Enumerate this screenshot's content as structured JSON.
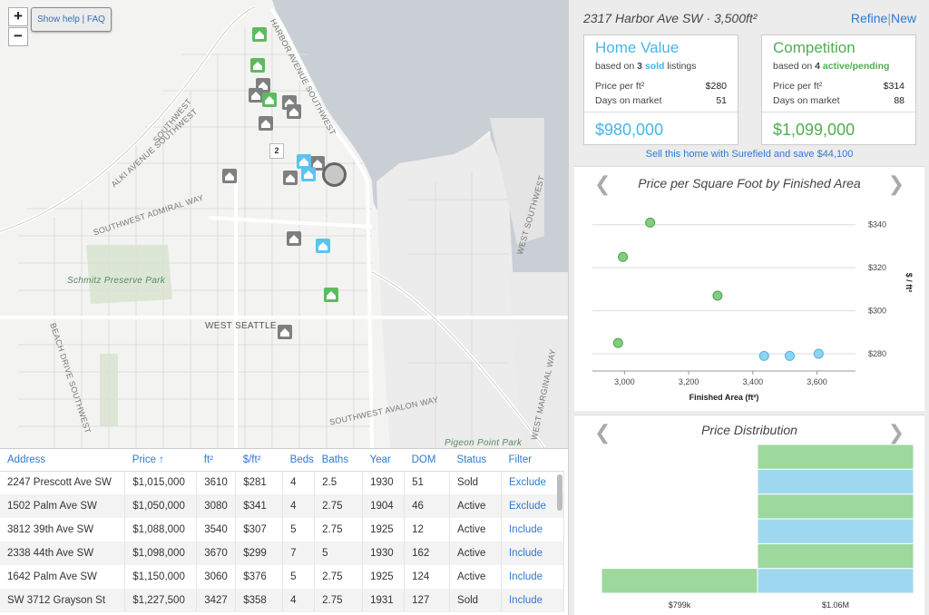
{
  "map": {
    "zoom_in": "+",
    "zoom_out": "−",
    "help_label": "Show help | FAQ",
    "cluster_count": "2",
    "labels": {
      "alki": "ALKI AVENUE SOUTHWEST",
      "harbor": "HARBOR AVENUE SOUTHWEST",
      "admiral": "SOUTHWEST ADMIRAL WAY",
      "schmitz": "Schmitz Preserve Park",
      "west_seattle": "WEST SEATTLE",
      "beach": "BEACH DRIVE SOUTHWEST",
      "avalon": "SOUTHWEST AVALON WAY",
      "pigeon": "Pigeon Point Park",
      "marginal": "WEST MARGINAL WAY",
      "west": "WEST SOUTHWEST",
      "southwest": "SOUTHWEST"
    }
  },
  "table": {
    "headers": [
      "Address",
      "Price ↑",
      "ft²",
      "$/ft²",
      "Beds",
      "Baths",
      "Year",
      "DOM",
      "Status",
      "Filter"
    ],
    "rows": [
      [
        "2247 Prescott Ave SW",
        "$1,015,000",
        "3610",
        "$281",
        "4",
        "2.5",
        "1930",
        "51",
        "Sold",
        "Exclude"
      ],
      [
        "1502 Palm Ave SW",
        "$1,050,000",
        "3080",
        "$341",
        "4",
        "2.75",
        "1904",
        "46",
        "Active",
        "Exclude"
      ],
      [
        "3812 39th Ave SW",
        "$1,088,000",
        "3540",
        "$307",
        "5",
        "2.75",
        "1925",
        "12",
        "Active",
        "Include"
      ],
      [
        "2338 44th Ave SW",
        "$1,098,000",
        "3670",
        "$299",
        "7",
        "5",
        "1930",
        "162",
        "Active",
        "Include"
      ],
      [
        "1642 Palm Ave SW",
        "$1,150,000",
        "3060",
        "$376",
        "5",
        "2.75",
        "1925",
        "124",
        "Active",
        "Include"
      ],
      [
        "SW 3712 Grayson St",
        "$1,227,500",
        "3427",
        "$358",
        "4",
        "2.75",
        "1931",
        "127",
        "Sold",
        "Include"
      ]
    ]
  },
  "header": {
    "address": "2317 Harbor Ave SW · 3,500ft²",
    "refine": "Refine",
    "separator": "|",
    "new": "New"
  },
  "home_value": {
    "title": "Home Value",
    "sub_prefix": "based on ",
    "sub_count": "3",
    "sub_kind": "sold",
    "sub_suffix": " listings",
    "ppf_label": "Price per ft²",
    "ppf_value": "$280",
    "dom_label": "Days on market",
    "dom_value": "51",
    "estimate": "$980,000"
  },
  "competition": {
    "title": "Competition",
    "sub_prefix": "based on ",
    "sub_count": "4",
    "sub_kind": "active/pending",
    "ppf_label": "Price per ft²",
    "ppf_value": "$314",
    "dom_label": "Days on market",
    "dom_value": "88",
    "estimate": "$1,099,000"
  },
  "sell_link": "Sell this home with Surefield and save $44,100",
  "colors": {
    "accent_blue": "#47b5e8",
    "accent_green": "#4fae4f",
    "link": "#2f7ad0"
  },
  "chart_data": [
    {
      "type": "scatter",
      "title": "Price per Square Foot by Finished Area",
      "xlabel": "Finished Area (ft²)",
      "ylabel": "$ / ft²",
      "xlim": [
        2900,
        3720
      ],
      "ylim": [
        272,
        350
      ],
      "xticks": [
        3000,
        3200,
        3400,
        3600
      ],
      "xtick_labels": [
        "3,000",
        "3,200",
        "3,400",
        "3,600"
      ],
      "yticks": [
        280,
        300,
        320,
        340
      ],
      "ytick_labels": [
        "$280",
        "$300",
        "$320",
        "$340"
      ],
      "series": [
        {
          "name": "Competition",
          "color": "#7fcf7f",
          "points": [
            [
              3080,
              341
            ],
            [
              2995,
              325
            ],
            [
              3290,
              307
            ],
            [
              2980,
              285
            ]
          ]
        },
        {
          "name": "Home Value",
          "color": "#8fd3f2",
          "points": [
            [
              3435,
              279
            ],
            [
              3515,
              279
            ],
            [
              3605,
              280
            ]
          ]
        }
      ]
    },
    {
      "type": "bar",
      "title": "Price Distribution",
      "categories": [
        "$799k",
        "$1.06M"
      ],
      "stacks": [
        [
          "green"
        ],
        [
          "blue",
          "green",
          "blue",
          "green",
          "blue",
          "green"
        ]
      ],
      "colors": {
        "green": "#9dd89d",
        "blue": "#9ed8f0"
      },
      "ylim": [
        0,
        6
      ]
    }
  ]
}
